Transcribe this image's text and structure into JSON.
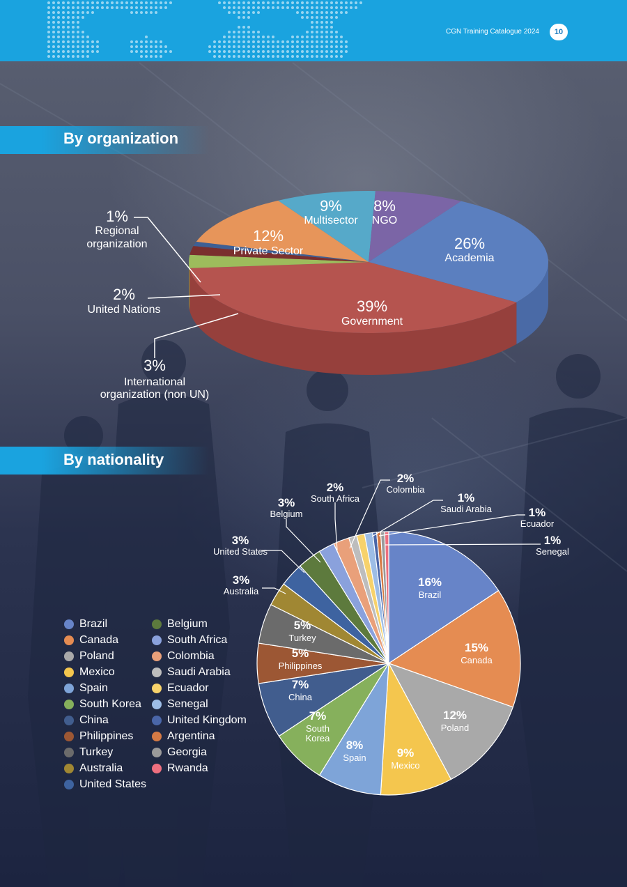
{
  "header": {
    "title": "CGN Training Catalogue 2024",
    "page_number": "10"
  },
  "sections": {
    "organization_title": "By organization",
    "nationality_title": "By nationality"
  },
  "chart_data": [
    {
      "type": "pie",
      "style": "3d",
      "slices": [
        {
          "label": "Academia",
          "value": 26,
          "pct_label": "26%",
          "color": "#5b7fbf",
          "side": "#4a6aa6"
        },
        {
          "label": "Government",
          "value": 39,
          "pct_label": "39%",
          "color": "#b5544f",
          "side": "#96403c"
        },
        {
          "label": "International organization (non UN)",
          "value": 3,
          "pct_label": "3%",
          "color": "#9dbc5c",
          "side": "#7f9a48"
        },
        {
          "label": "United Nations",
          "value": 2,
          "pct_label": "2%",
          "color": "#7a2f2e",
          "side": "#5e2322"
        },
        {
          "label": "Regional organization",
          "value": 1,
          "pct_label": "1%",
          "color": "#3e5f94",
          "side": "#2f4a75"
        },
        {
          "label": "Private Sector",
          "value": 12,
          "pct_label": "12%",
          "color": "#e7955a",
          "side": "#c87b45"
        },
        {
          "label": "Multisector",
          "value": 9,
          "pct_label": "9%",
          "color": "#56a9c9",
          "side": "#4590ad"
        },
        {
          "label": "NGO",
          "value": 8,
          "pct_label": "8%",
          "color": "#7b65a6",
          "side": "#63518a"
        }
      ]
    },
    {
      "type": "pie",
      "slices": [
        {
          "label": "Brazil",
          "value": 16,
          "pct_label": "16%",
          "color": "#6784c8"
        },
        {
          "label": "Canada",
          "value": 15,
          "pct_label": "15%",
          "color": "#e58c52"
        },
        {
          "label": "Poland",
          "value": 12,
          "pct_label": "12%",
          "color": "#a9a9a9"
        },
        {
          "label": "Mexico",
          "value": 9,
          "pct_label": "9%",
          "color": "#f4c64e"
        },
        {
          "label": "Spain",
          "value": 8,
          "pct_label": "8%",
          "color": "#7ea4d8"
        },
        {
          "label": "South Korea",
          "value": 7,
          "pct_label": "7%",
          "color": "#86b05c"
        },
        {
          "label": "China",
          "value": 7,
          "pct_label": "7%",
          "color": "#415d8e"
        },
        {
          "label": "Philippines",
          "value": 5,
          "pct_label": "5%",
          "color": "#9c5734"
        },
        {
          "label": "Turkey",
          "value": 5,
          "pct_label": "5%",
          "color": "#6b6b6b"
        },
        {
          "label": "Australia",
          "value": 3,
          "pct_label": "3%",
          "color": "#a08733"
        },
        {
          "label": "United States",
          "value": 3,
          "pct_label": "3%",
          "color": "#3e63a0"
        },
        {
          "label": "Belgium",
          "value": 3,
          "pct_label": "3%",
          "color": "#5d7a3d"
        },
        {
          "label": "South Africa",
          "value": 2,
          "pct_label": "2%",
          "color": "#8aa1dc"
        },
        {
          "label": "Colombia",
          "value": 2,
          "pct_label": "2%",
          "color": "#e9a07a"
        },
        {
          "label": "Saudi Arabia",
          "value": 1,
          "pct_label": "1%",
          "color": "#bdbdbd"
        },
        {
          "label": "Ecuador",
          "value": 1,
          "pct_label": "1%",
          "color": "#f7d26b"
        },
        {
          "label": "Senegal",
          "value": 1,
          "pct_label": "1%",
          "color": "#9dbde6"
        },
        {
          "label": "United Kingdom",
          "value": 0.5,
          "pct_label": "",
          "color": "#4a66a8"
        },
        {
          "label": "Argentina",
          "value": 0.5,
          "pct_label": "",
          "color": "#d57a45"
        },
        {
          "label": "Georgia",
          "value": 0.5,
          "pct_label": "",
          "color": "#9a9a9a"
        },
        {
          "label": "Rwanda",
          "value": 0.5,
          "pct_label": "",
          "color": "#ee6f7f"
        }
      ],
      "legend_left": [
        "Brazil",
        "Canada",
        "Poland",
        "Mexico",
        "Spain",
        "South Korea",
        "China",
        "Philippines",
        "Turkey",
        "Australia",
        "United States"
      ],
      "legend_right": [
        "Belgium",
        "South Africa",
        "Colombia",
        "Saudi Arabia",
        "Ecuador",
        "Senegal",
        "United Kingdom",
        "Argentina",
        "Georgia",
        "Rwanda"
      ]
    }
  ]
}
